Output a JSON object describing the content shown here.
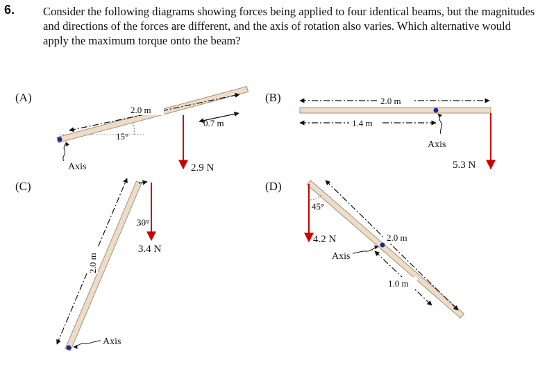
{
  "question": {
    "number": "6.",
    "text": "Consider the following diagrams showing forces being applied to four identical beams, but the magnitudes and directions of the forces are different, and the axis of rotation also varies. Which alternative would apply the maximum torque onto the beam?"
  },
  "panels": {
    "a": {
      "label": "(A)",
      "length": "2.0 m",
      "offset": "0.7 m",
      "angle": "15°",
      "axis": "Axis",
      "force": "2.9 N"
    },
    "b": {
      "label": "(B)",
      "length": "2.0 m",
      "offset": "1.4 m",
      "axis": "Axis",
      "force": "5.3 N"
    },
    "c": {
      "label": "(C)",
      "length": "2.0 m",
      "angle": "30°",
      "force": "3.4 N",
      "axis": "Axis"
    },
    "d": {
      "label": "(D)",
      "angle": "45°",
      "force": "4.2 N",
      "axis": "Axis",
      "length": "2.0 m",
      "offset": "1.0 m"
    }
  },
  "colors": {
    "beam_fill": "#ecdcc8",
    "beam_edge": "#a89078",
    "force": "#cc0000",
    "axis_dot": "#1a2a9a"
  }
}
